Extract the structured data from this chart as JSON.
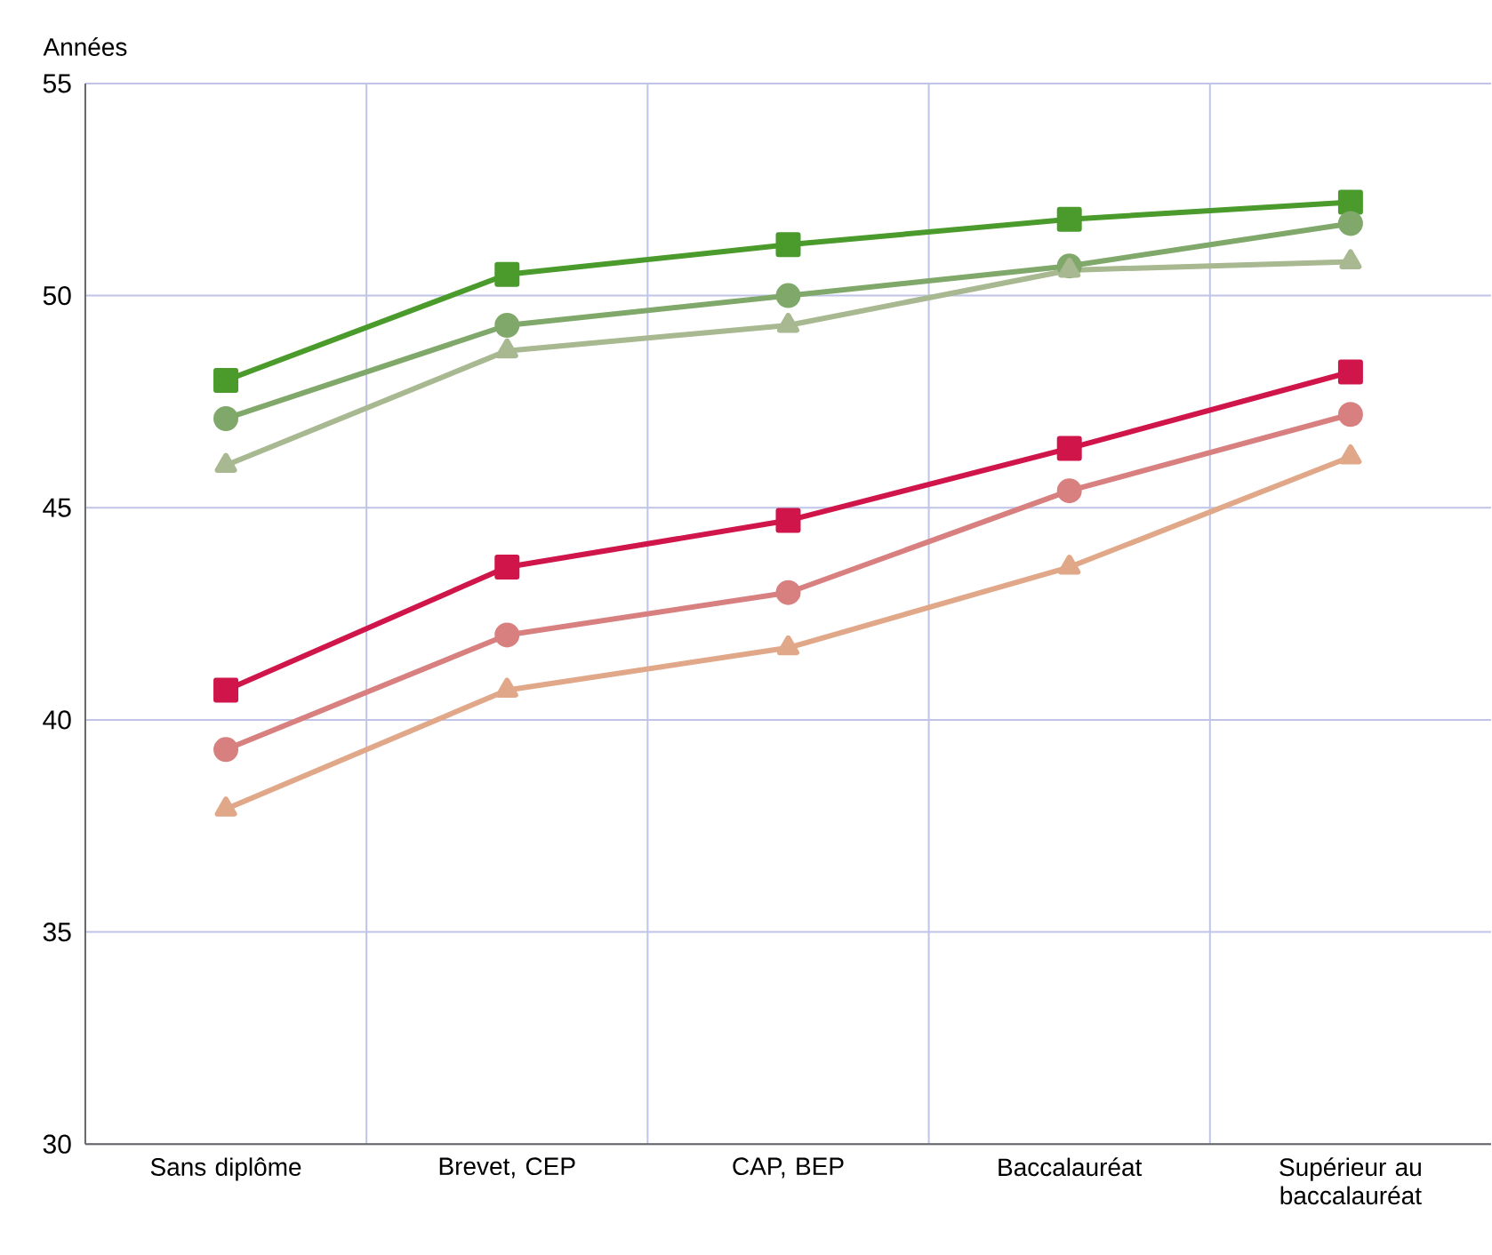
{
  "chart_data": {
    "type": "line",
    "ylabel": "Années",
    "categories": [
      "Sans diplôme",
      "Brevet, CEP",
      "CAP, BEP",
      "Baccalauréat",
      "Supérieur au baccalauréat"
    ],
    "ylim": [
      30,
      55
    ],
    "yticks": [
      30,
      35,
      40,
      45,
      50,
      55
    ],
    "grid": true,
    "line_style": "solid",
    "series": [
      {
        "color": "#4a9a2c",
        "marker": "square",
        "values": [
          48.0,
          50.5,
          51.2,
          51.8,
          52.2
        ]
      },
      {
        "color": "#7fa86a",
        "marker": "circle",
        "values": [
          47.1,
          49.3,
          50.0,
          50.7,
          51.7
        ]
      },
      {
        "color": "#a8b890",
        "marker": "triangle",
        "values": [
          46.0,
          48.7,
          49.3,
          50.6,
          50.8
        ]
      },
      {
        "color": "#d0154a",
        "marker": "square",
        "values": [
          40.7,
          43.6,
          44.7,
          46.4,
          48.2
        ]
      },
      {
        "color": "#d88080",
        "marker": "circle",
        "values": [
          39.3,
          42.0,
          43.0,
          45.4,
          47.2
        ]
      },
      {
        "color": "#e0a888",
        "marker": "triangle",
        "values": [
          37.9,
          40.7,
          41.7,
          43.6,
          46.2
        ]
      }
    ]
  }
}
